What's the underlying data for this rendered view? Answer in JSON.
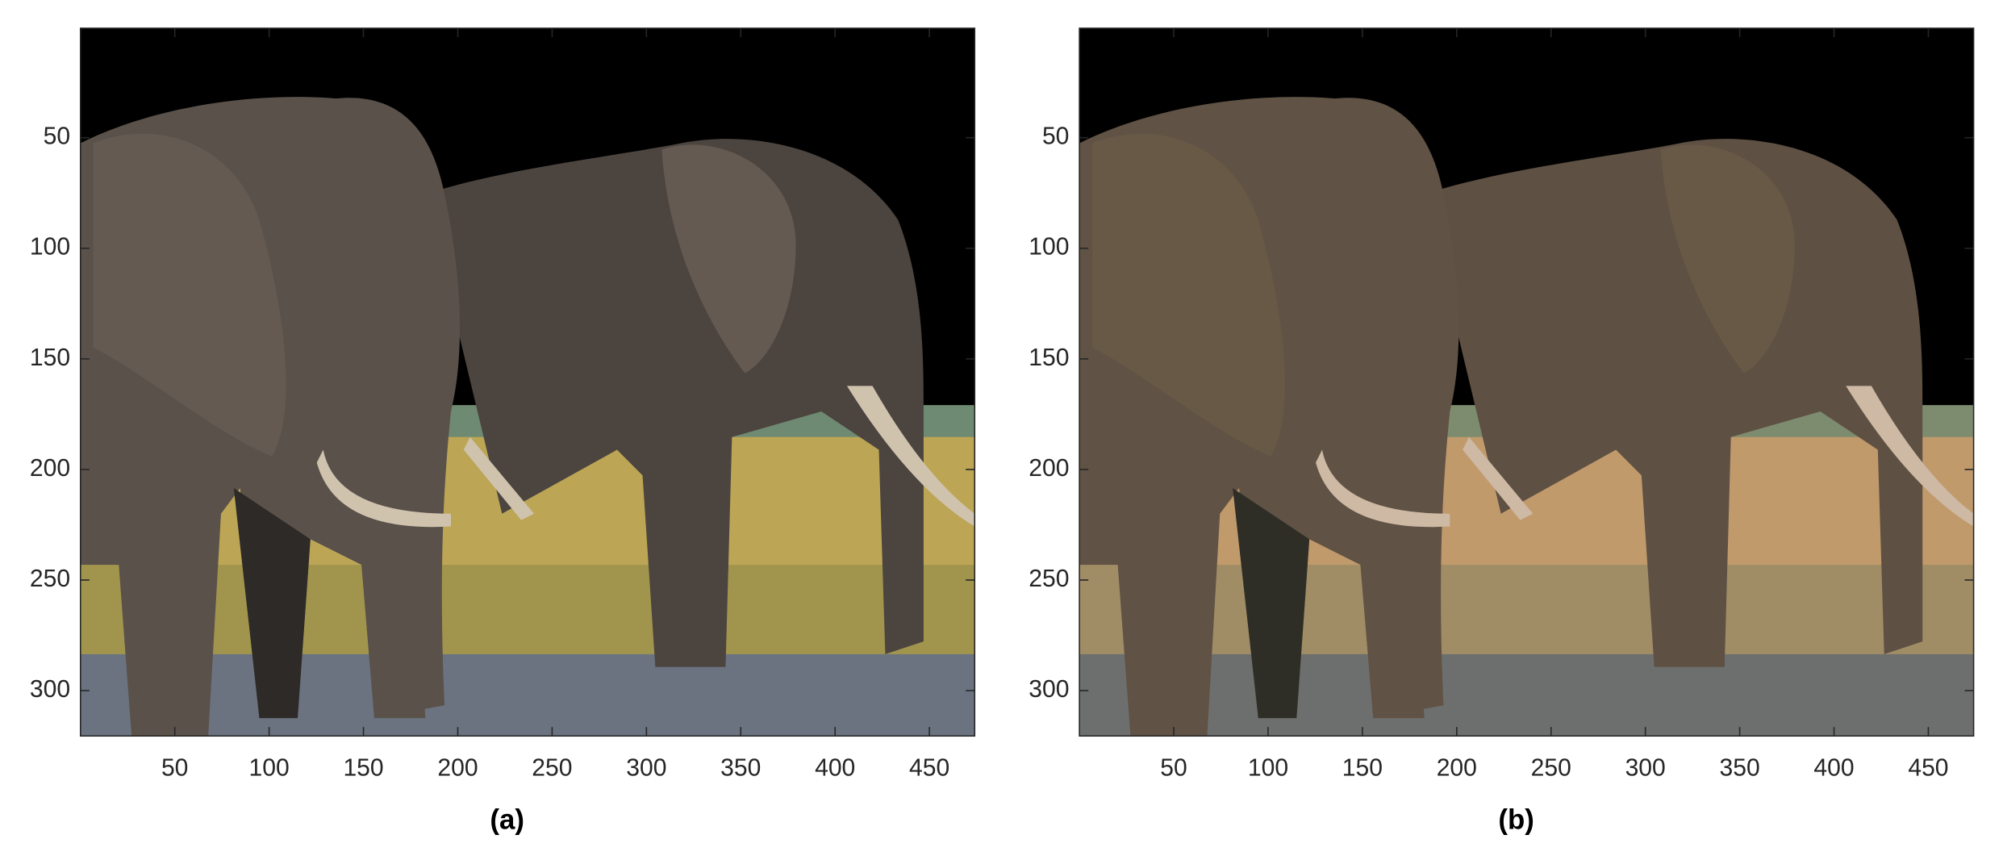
{
  "chart_data": [
    {
      "type": "image",
      "caption": "(a)",
      "xlim": [
        0,
        474
      ],
      "ylim": [
        0.5,
        320.5
      ],
      "xticks": [
        50,
        100,
        150,
        200,
        250,
        300,
        350,
        400,
        450
      ],
      "yticks": [
        50,
        100,
        150,
        200,
        250,
        300
      ]
    },
    {
      "type": "image",
      "caption": "(b)",
      "xlim": [
        0,
        474
      ],
      "ylim": [
        0.5,
        320.5
      ],
      "xticks": [
        50,
        100,
        150,
        200,
        250,
        300,
        350,
        400,
        450
      ],
      "yticks": [
        50,
        100,
        150,
        200,
        250,
        300
      ]
    }
  ]
}
